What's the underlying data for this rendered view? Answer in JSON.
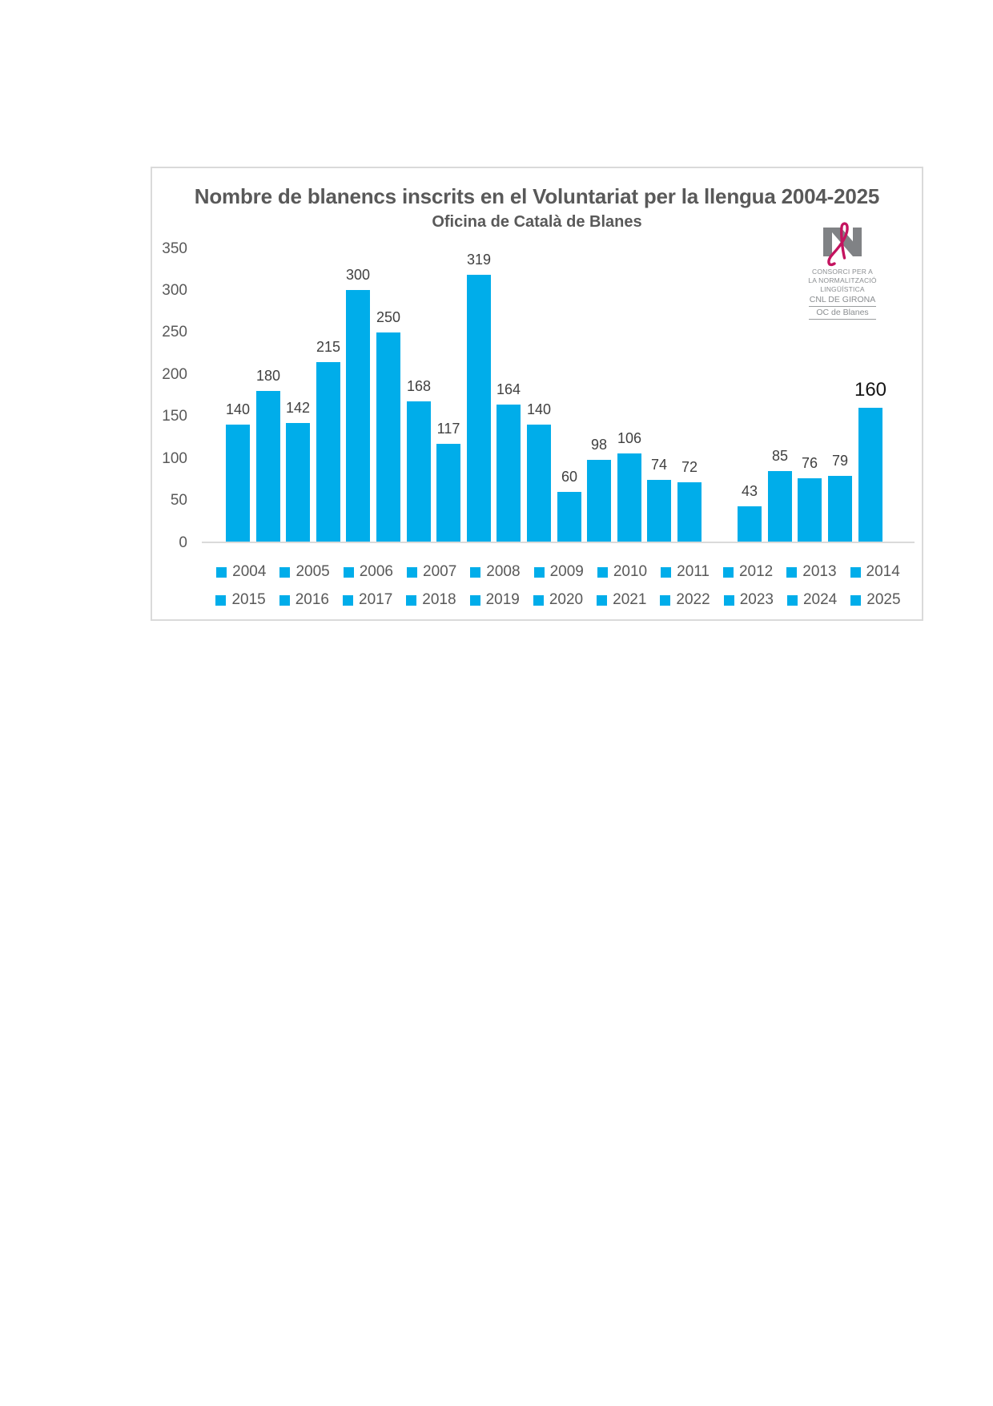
{
  "chart_data": {
    "type": "bar",
    "title": "Nombre de blanencs inscrits en el Voluntariat per la llengua 2004-2025",
    "subtitle": "Oficina de Català de Blanes",
    "categories": [
      "2004",
      "2005",
      "2006",
      "2007",
      "2008",
      "2009",
      "2010",
      "2011",
      "2012",
      "2013",
      "2014",
      "2015",
      "2016",
      "2017",
      "2018",
      "2019",
      "2020",
      "2021",
      "2022",
      "2023",
      "2024",
      "2025"
    ],
    "values": [
      140,
      180,
      142,
      215,
      300,
      250,
      168,
      117,
      319,
      164,
      140,
      60,
      98,
      106,
      74,
      72,
      null,
      43,
      85,
      76,
      79,
      160
    ],
    "data_labels_visible": true,
    "emphasized_label_category": "2025",
    "y_ticks": [
      0,
      50,
      100,
      150,
      200,
      250,
      300,
      350
    ],
    "ylim": [
      0,
      350
    ],
    "grid": false,
    "legend_position": "bottom",
    "legend_rows": 2,
    "bar_color": "#00ADEA",
    "title_color": "#595959",
    "label_color": "#404040"
  },
  "logo": {
    "lines": [
      "CONSORCI PER A",
      "LA NORMALITZACIÓ",
      "LINGÜÍSTICA"
    ],
    "org": "CNL DE GIRONA",
    "office": "OC de Blanes",
    "mark_color": "#808285",
    "ribbon_color": "#C4135F"
  }
}
